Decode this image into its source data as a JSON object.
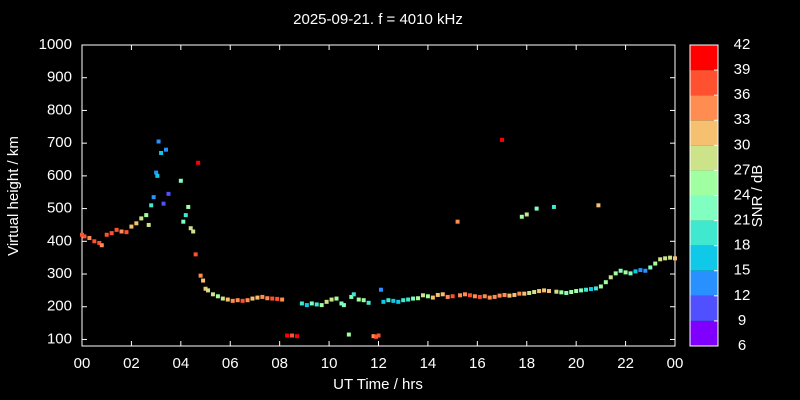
{
  "chart_data": {
    "type": "scatter",
    "title": "2025-09-21. f = 4010 kHz",
    "xlabel": "UT Time / hrs",
    "ylabel": "Virtual height / km",
    "colorbar_label": "SNR / dB",
    "xlim": [
      0,
      24
    ],
    "xticks": [
      {
        "value": 0,
        "label": "00"
      },
      {
        "value": 2,
        "label": "02"
      },
      {
        "value": 4,
        "label": "04"
      },
      {
        "value": 6,
        "label": "06"
      },
      {
        "value": 8,
        "label": "08"
      },
      10,
      12,
      14,
      16,
      18,
      20,
      22,
      {
        "value": 24,
        "label": "00"
      }
    ],
    "ylim": [
      80,
      1000
    ],
    "yticks": [
      100,
      200,
      300,
      400,
      500,
      600,
      700,
      800,
      900,
      1000
    ],
    "clim": [
      6,
      42
    ],
    "cticks": [
      6,
      9,
      12,
      15,
      18,
      21,
      24,
      27,
      30,
      33,
      36,
      39,
      42
    ],
    "colormap": [
      "#8000ff",
      "#5050ff",
      "#2890ff",
      "#10c8e8",
      "#40e8d0",
      "#80ffc0",
      "#a0ffa0",
      "#cce38a",
      "#f5c070",
      "#ff8c50",
      "#ff5030",
      "#ff0000"
    ],
    "x": [
      0.0,
      0.1,
      0.3,
      0.5,
      0.7,
      0.8,
      1.0,
      1.2,
      1.4,
      1.6,
      1.8,
      2.0,
      2.2,
      2.4,
      2.6,
      2.7,
      2.8,
      2.9,
      3.0,
      3.05,
      3.1,
      3.2,
      3.3,
      3.4,
      3.5,
      4.0,
      4.1,
      4.2,
      4.3,
      4.4,
      4.5,
      4.6,
      4.7,
      4.8,
      4.9,
      5.0,
      5.1,
      5.3,
      5.5,
      5.7,
      5.9,
      6.1,
      6.3,
      6.5,
      6.7,
      6.9,
      7.1,
      7.3,
      7.5,
      7.7,
      7.9,
      8.1,
      8.3,
      8.5,
      8.7,
      8.9,
      9.1,
      9.3,
      9.5,
      9.7,
      9.9,
      10.1,
      10.3,
      10.5,
      10.6,
      10.8,
      10.9,
      11.0,
      11.2,
      11.4,
      11.6,
      11.8,
      11.9,
      12.0,
      12.1,
      12.2,
      12.4,
      12.6,
      12.8,
      13.0,
      13.2,
      13.4,
      13.6,
      13.8,
      14.0,
      14.2,
      14.4,
      14.6,
      14.8,
      15.0,
      15.2,
      15.3,
      15.5,
      15.7,
      15.9,
      16.1,
      16.3,
      16.5,
      16.7,
      16.9,
      17.0,
      17.1,
      17.3,
      17.5,
      17.7,
      17.8,
      17.9,
      18.0,
      18.1,
      18.3,
      18.4,
      18.5,
      18.7,
      18.9,
      19.1,
      19.2,
      19.4,
      19.6,
      19.8,
      20.0,
      20.2,
      20.4,
      20.6,
      20.8,
      20.9,
      21.0,
      21.2,
      21.4,
      21.6,
      21.8,
      22.0,
      22.2,
      22.4,
      22.6,
      22.8,
      23.0,
      23.2,
      23.4,
      23.6,
      23.8,
      24.0
    ],
    "values": [
      420,
      415,
      410,
      400,
      395,
      388,
      420,
      425,
      435,
      430,
      428,
      445,
      455,
      470,
      480,
      450,
      510,
      535,
      610,
      600,
      705,
      670,
      515,
      680,
      545,
      585,
      460,
      480,
      505,
      440,
      430,
      360,
      640,
      295,
      280,
      255,
      250,
      238,
      232,
      225,
      222,
      218,
      220,
      218,
      220,
      225,
      228,
      230,
      226,
      225,
      224,
      222,
      112,
      112,
      110,
      210,
      205,
      210,
      207,
      205,
      215,
      222,
      225,
      210,
      205,
      115,
      230,
      238,
      222,
      220,
      212,
      110,
      108,
      112,
      252,
      215,
      220,
      218,
      215,
      220,
      222,
      225,
      226,
      235,
      232,
      228,
      236,
      238,
      230,
      232,
      460,
      235,
      238,
      235,
      232,
      230,
      232,
      228,
      230,
      234,
      710,
      236,
      234,
      236,
      240,
      475,
      240,
      482,
      242,
      245,
      500,
      248,
      250,
      248,
      505,
      246,
      244,
      242,
      245,
      248,
      250,
      252,
      254,
      256,
      510,
      262,
      275,
      290,
      302,
      310,
      305,
      302,
      308,
      312,
      310,
      320,
      332,
      345,
      348,
      350,
      348
    ],
    "snr": [
      38,
      36,
      35,
      38,
      36,
      33,
      36,
      38,
      37,
      33,
      36,
      31,
      30,
      28,
      26,
      27,
      20,
      14,
      13,
      16,
      14,
      16,
      11,
      13,
      11,
      22,
      21,
      18,
      24,
      28,
      27,
      36,
      41,
      33,
      30,
      31,
      29,
      27,
      25,
      27,
      30,
      33,
      35,
      36,
      33,
      31,
      30,
      33,
      34,
      36,
      37,
      33,
      40,
      38,
      40,
      20,
      17,
      22,
      19,
      26,
      28,
      27,
      24,
      22,
      21,
      24,
      21,
      18,
      24,
      26,
      19,
      33,
      36,
      38,
      14,
      16,
      18,
      15,
      17,
      18,
      20,
      23,
      25,
      27,
      25,
      30,
      32,
      30,
      33,
      36,
      35,
      33,
      35,
      37,
      34,
      36,
      35,
      34,
      33,
      35,
      39,
      33,
      32,
      31,
      33,
      26,
      30,
      27,
      29,
      28,
      22,
      30,
      32,
      30,
      20,
      29,
      25,
      22,
      24,
      25,
      22,
      18,
      16,
      19,
      30,
      24,
      26,
      27,
      24,
      22,
      25,
      21,
      16,
      14,
      13,
      21,
      25,
      27,
      29,
      27,
      30
    ]
  }
}
